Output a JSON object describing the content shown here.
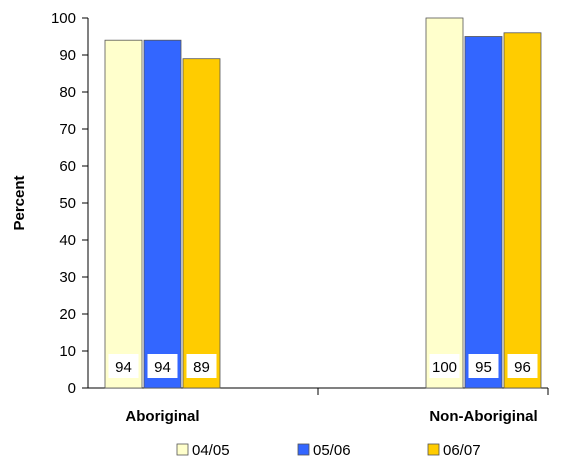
{
  "chart_data": {
    "type": "bar",
    "title": "",
    "xlabel": "",
    "ylabel": "Percent",
    "ylim": [
      0,
      100
    ],
    "yticks": [
      0,
      10,
      20,
      30,
      40,
      50,
      60,
      70,
      80,
      90,
      100
    ],
    "categories": [
      "Aboriginal",
      "Non-Aboriginal"
    ],
    "series": [
      {
        "name": "04/05",
        "color": "#ffffcc",
        "values": [
          94,
          100
        ]
      },
      {
        "name": "05/06",
        "color": "#3366ff",
        "values": [
          94,
          95
        ]
      },
      {
        "name": "06/07",
        "color": "#ffcc00",
        "values": [
          89,
          96
        ]
      }
    ],
    "grid": false,
    "legend": "bottom"
  }
}
